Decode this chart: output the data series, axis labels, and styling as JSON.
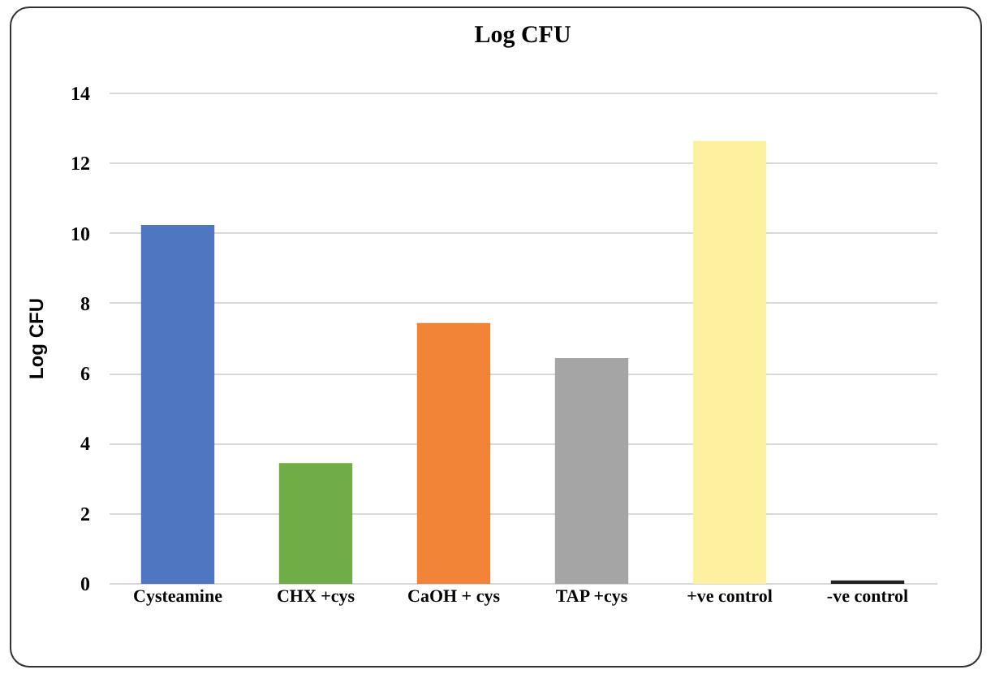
{
  "chart_data": {
    "type": "bar",
    "title": "Log CFU",
    "ylabel": "Log CFU",
    "categories": [
      "Cysteamine",
      "CHX +cys",
      "CaOH + cys",
      "TAP +cys",
      "+ve control",
      "-ve control"
    ],
    "values": [
      10.2,
      3.4,
      7.4,
      6.4,
      12.6,
      0.05
    ],
    "colors": [
      "#4f76c1",
      "#70ad47",
      "#f28437",
      "#a5a5a5",
      "#fdf1a0",
      "#222222"
    ],
    "ylim": [
      0,
      14
    ],
    "yticks": [
      0,
      2,
      4,
      6,
      8,
      10,
      12,
      14
    ],
    "grid": "y"
  }
}
